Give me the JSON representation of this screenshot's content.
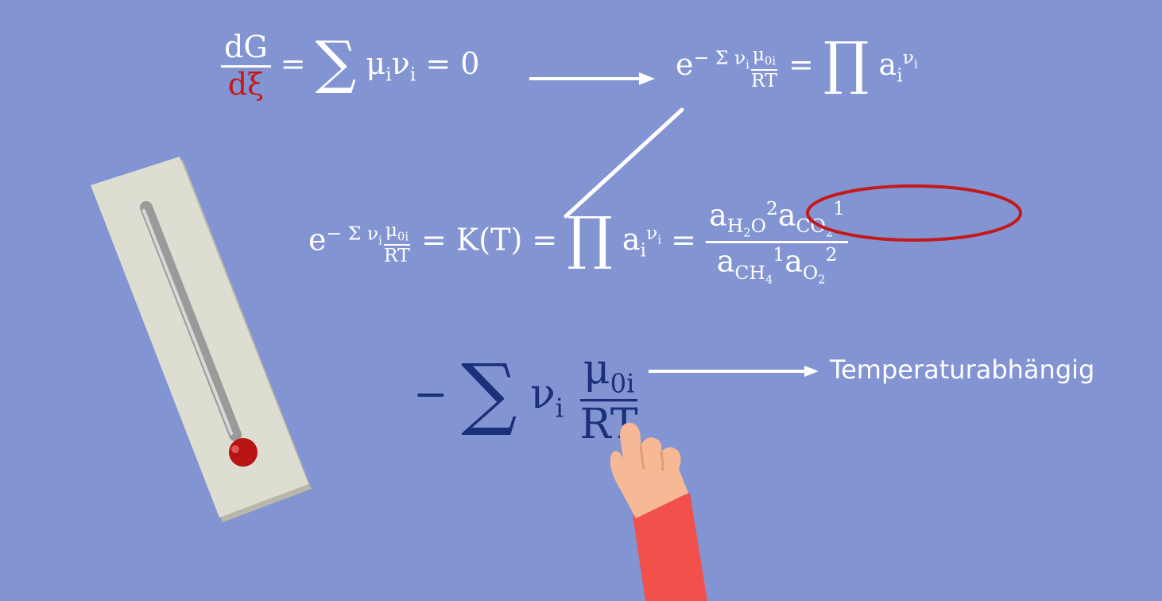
{
  "equation1": {
    "dG": "dG",
    "dxi": "dξ",
    "sum_body_mu": "μ",
    "sum_body_i1": "i",
    "sum_body_nu": "ν",
    "sum_body_i2": "i",
    "equals_zero": "= 0"
  },
  "equation2": {
    "e": "e",
    "exp_prefix": "− Σ ν",
    "exp_i": "i",
    "mu0i": "μ",
    "mu0i_sub": "0i",
    "rt": "RT",
    "equals": "=",
    "prod_a": "a",
    "prod_i": "i",
    "prod_nu": "ν",
    "prod_nu_i": "i"
  },
  "equation3": {
    "e": "e",
    "exp_prefix": "− Σ ν",
    "exp_i": "i",
    "mu0i": "μ",
    "mu0i_sub": "0i",
    "rt": "RT",
    "equals_k": "= K(T) =",
    "prod_a": "a",
    "prod_i": "i",
    "prod_nu": "ν",
    "prod_nu_i": "i",
    "equals2": "=",
    "num_a1": "a",
    "num_h2o_h": "H",
    "num_h2o_2": "2",
    "num_h2o_o": "O",
    "num_exp1": "2",
    "num_a2": "a",
    "num_co2_co": "CO",
    "num_co2_2": "2",
    "num_exp2": "1",
    "den_a1": "a",
    "den_ch4_ch": "CH",
    "den_ch4_4": "4",
    "den_exp1": "1",
    "den_a2": "a",
    "den_o2_o": "O",
    "den_o2_2": "2",
    "den_exp2": "2"
  },
  "equation4": {
    "minus": "−",
    "nu": "ν",
    "nu_i": "i",
    "mu": "μ",
    "mu_sub": "0i",
    "rt": "RT"
  },
  "label": {
    "temperature_dependent": "Temperaturabhängig"
  },
  "colors": {
    "background": "#8394d2",
    "white": "#ffffff",
    "accent_red": "#c41919",
    "dark_blue": "#1b2f7a",
    "thermometer_body": "#dddbd0",
    "hand_skin": "#f7b995",
    "sleeve": "#f2504a"
  },
  "icons": {
    "thermometer": "thermometer-icon",
    "hand": "pointing-hand-icon"
  }
}
